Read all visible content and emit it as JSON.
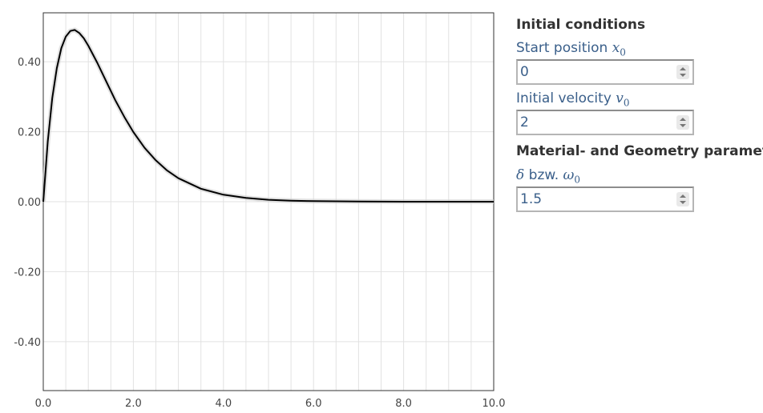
{
  "chart_data": {
    "type": "line",
    "title": "",
    "xlabel": "",
    "ylabel": "",
    "xlim": [
      0,
      10
    ],
    "ylim": [
      -0.54,
      0.54
    ],
    "grid": true,
    "x_ticks": [
      0,
      2,
      4,
      6,
      8,
      10
    ],
    "x_tick_labels": [
      "0.0",
      "2.0",
      "4.0",
      "6.0",
      "8.0",
      "10.0"
    ],
    "y_ticks": [
      -0.4,
      -0.2,
      0,
      0.2,
      0.4
    ],
    "y_tick_labels": [
      "-0.40",
      "-0.20",
      "0.00",
      "0.20",
      "0.40"
    ],
    "series": [
      {
        "name": "",
        "color": "#000000",
        "x": [
          0,
          0.1,
          0.2,
          0.3,
          0.4,
          0.5,
          0.6,
          0.7,
          0.8,
          0.9,
          1.0,
          1.2,
          1.4,
          1.6,
          1.8,
          2.0,
          2.25,
          2.5,
          2.75,
          3.0,
          3.5,
          4.0,
          4.5,
          5.0,
          5.5,
          6.0,
          7.0,
          8.0,
          9.0,
          10.0
        ],
        "y": [
          0,
          0.172,
          0.296,
          0.382,
          0.439,
          0.472,
          0.488,
          0.491,
          0.482,
          0.467,
          0.446,
          0.397,
          0.343,
          0.29,
          0.242,
          0.199,
          0.154,
          0.118,
          0.089,
          0.067,
          0.037,
          0.02,
          0.011,
          0.0055,
          0.0029,
          0.0015,
          0.0004,
          0.0001,
          0.0,
          0.0
        ]
      }
    ]
  },
  "panel": {
    "initial_conditions_title": "Initial conditions",
    "start_position_label": "Start position",
    "start_position_symbol": "x",
    "start_position_sub": "0",
    "start_position_value": "0",
    "initial_velocity_label": "Initial velocity",
    "initial_velocity_symbol": "v",
    "initial_velocity_sub": "0",
    "initial_velocity_value": "2",
    "material_title": "Material- and Geometry parameters",
    "param_symbol_delta": "δ",
    "param_connector": "bzw.",
    "param_symbol_omega": "ω",
    "param_sub": "0",
    "param_value": "1.5"
  }
}
